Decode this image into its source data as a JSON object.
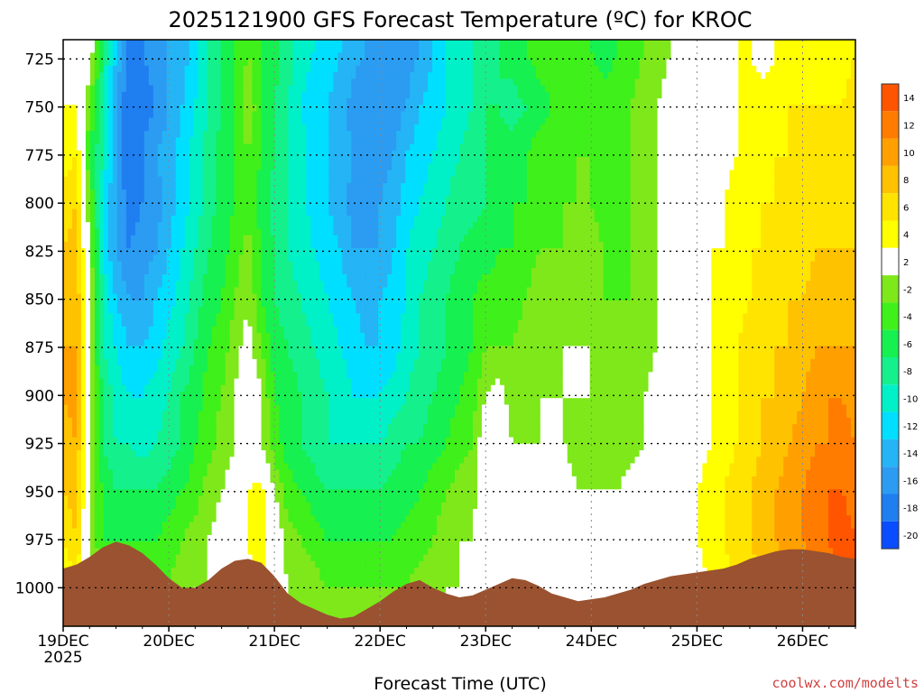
{
  "chart_data": {
    "type": "heatmap",
    "title": "2025121900 GFS Forecast Temperature (ºC) for KROC",
    "xlabel": "Forecast Time (UTC)",
    "ylabel": "",
    "credit": "coolwx.com/modelts",
    "x_ticks": [
      {
        "label": "19DEC",
        "sublabel": "2025",
        "day": 0
      },
      {
        "label": "20DEC",
        "day": 1
      },
      {
        "label": "21DEC",
        "day": 2
      },
      {
        "label": "22DEC",
        "day": 3
      },
      {
        "label": "23DEC",
        "day": 4
      },
      {
        "label": "24DEC",
        "day": 5
      },
      {
        "label": "25DEC",
        "day": 6
      },
      {
        "label": "26DEC",
        "day": 7
      }
    ],
    "xlim_days": [
      0,
      7.5
    ],
    "y_ticks": [
      725,
      750,
      775,
      800,
      825,
      850,
      875,
      900,
      925,
      950,
      975,
      1000
    ],
    "ylim_hpa": [
      1020,
      715
    ],
    "colorbar_levels": [
      14,
      12,
      10,
      8,
      6,
      4,
      2,
      -2,
      -4,
      -6,
      -8,
      -10,
      -12,
      -14,
      -16,
      -18,
      -20
    ],
    "colors": {
      "terrain": "#9a5230",
      "freezing_contour": "#b0106a",
      "bands": [
        "#0a4cff",
        "#1f7ef0",
        "#2b9cf2",
        "#25b4f5",
        "#00dfff",
        "#00f0c8",
        "#14f08c",
        "#16f050",
        "#3ff01a",
        "#7ee81a",
        "#ffffff",
        "#ffff00",
        "#ffe400",
        "#ffc200",
        "#ffa000",
        "#ff7c00",
        "#ff5500"
      ]
    },
    "time_steps_days": [
      0,
      0.125,
      0.25,
      0.375,
      0.5,
      0.625,
      0.75,
      0.875,
      1,
      1.125,
      1.25,
      1.375,
      1.5,
      1.625,
      1.75,
      1.875,
      2,
      2.125,
      2.25,
      2.375,
      2.5,
      2.625,
      2.75,
      2.875,
      3,
      3.125,
      3.25,
      3.375,
      3.5,
      3.625,
      3.75,
      3.875,
      4,
      4.125,
      4.25,
      4.375,
      4.5,
      4.625,
      4.75,
      4.875,
      5,
      5.125,
      5.25,
      5.375,
      5.5,
      5.625,
      5.75,
      5.875,
      6,
      6.125,
      6.25,
      6.375,
      6.5,
      6.625,
      6.75,
      6.875,
      7,
      7.125,
      7.25,
      7.375,
      7.5
    ],
    "pressure_levels_hpa": [
      720,
      750,
      775,
      800,
      825,
      850,
      875,
      900,
      925,
      950,
      975,
      1000
    ],
    "temperature_c": [
      [
        -2,
        -1,
        0,
        -8,
        -14,
        -19,
        -18,
        -17,
        -16,
        -15,
        -13,
        -10,
        -8,
        -6,
        -4,
        -6,
        -7,
        -9,
        -11,
        -12,
        -13,
        -14,
        -15,
        -16,
        -17,
        -18,
        -17,
        -16,
        -14,
        -12,
        -11,
        -10,
        -9,
        -8,
        -7,
        -6,
        -5,
        -5,
        -5,
        -5,
        -6,
        -7,
        -6,
        -5,
        -4,
        -3,
        -2,
        -2,
        -1,
        0,
        1,
        2,
        2,
        1,
        2,
        3,
        3,
        3,
        3,
        3,
        4
      ],
      [
        2,
        2,
        -4,
        -10,
        -16,
        -20,
        -19,
        -18,
        -16,
        -14,
        -12,
        -10,
        -8,
        -6,
        -2,
        -6,
        -8,
        -10,
        -12,
        -13,
        -14,
        -15,
        -17,
        -18,
        -18,
        -17,
        -16,
        -14,
        -13,
        -12,
        -11,
        -10,
        -8,
        -8,
        -9,
        -8,
        -7,
        -6,
        -6,
        -5,
        -5,
        -5,
        -5,
        -4,
        -3,
        -2,
        -1,
        -1,
        0,
        0,
        1,
        2,
        3,
        3,
        3,
        4,
        4,
        4,
        4,
        4,
        5
      ],
      [
        3,
        4,
        -6,
        -10,
        -16,
        -20,
        -18,
        -16,
        -15,
        -13,
        -11,
        -9,
        -7,
        -6,
        -4,
        -6,
        -8,
        -10,
        -11,
        -13,
        -14,
        -15,
        -16,
        -17,
        -17,
        -16,
        -14,
        -13,
        -12,
        -11,
        -10,
        -9,
        -8,
        -7,
        -7,
        -6,
        -5,
        -5,
        -5,
        -4,
        -4,
        -5,
        -5,
        -4,
        -3,
        -2,
        -1,
        0,
        1,
        1,
        1,
        2,
        3,
        3,
        4,
        4,
        5,
        5,
        5,
        5,
        5
      ],
      [
        5,
        6,
        -4,
        -12,
        -16,
        -19,
        -18,
        -17,
        -15,
        -13,
        -11,
        -9,
        -7,
        -6,
        -5,
        -7,
        -9,
        -10,
        -11,
        -13,
        -14,
        -15,
        -17,
        -17,
        -16,
        -15,
        -13,
        -12,
        -11,
        -10,
        -9,
        -9,
        -8,
        -7,
        -6,
        -6,
        -5,
        -5,
        -4,
        -4,
        -4,
        -5,
        -5,
        -4,
        -3,
        -2,
        -1,
        0,
        1,
        1,
        2,
        3,
        3,
        4,
        4,
        5,
        5,
        6,
        5,
        6,
        5
      ],
      [
        6,
        7,
        -2,
        -12,
        -16,
        -18,
        -17,
        -16,
        -14,
        -12,
        -10,
        -8,
        -7,
        -5,
        -3,
        -6,
        -8,
        -10,
        -11,
        -12,
        -13,
        -14,
        -16,
        -16,
        -16,
        -14,
        -12,
        -11,
        -10,
        -9,
        -8,
        -7,
        -7,
        -6,
        -6,
        -5,
        -4,
        -4,
        -4,
        -4,
        -3,
        -4,
        -5,
        -4,
        -3,
        -2,
        -1,
        0,
        1,
        2,
        2,
        3,
        4,
        4,
        5,
        5,
        5,
        6,
        6,
        6,
        6
      ],
      [
        7,
        8,
        -2,
        -10,
        -14,
        -16,
        -16,
        -14,
        -13,
        -11,
        -9,
        -7,
        -6,
        -4,
        -2,
        -6,
        -8,
        -9,
        -10,
        -11,
        -12,
        -13,
        -14,
        -15,
        -14,
        -13,
        -12,
        -10,
        -9,
        -8,
        -7,
        -6,
        -5,
        -5,
        -5,
        -4,
        -3,
        -3,
        -3,
        -3,
        -3,
        -4,
        -4,
        -4,
        -3,
        -2,
        -1,
        0,
        1,
        2,
        3,
        3,
        4,
        5,
        5,
        6,
        6,
        7,
        7,
        7,
        7
      ],
      [
        8,
        8,
        -2,
        -10,
        -12,
        -14,
        -14,
        -13,
        -11,
        -10,
        -8,
        -6,
        -5,
        -3,
        -1,
        -4,
        -7,
        -8,
        -9,
        -10,
        -11,
        -12,
        -13,
        -14,
        -14,
        -13,
        -11,
        -10,
        -9,
        -8,
        -7,
        -6,
        -4,
        -4,
        -4,
        -3,
        -3,
        -3,
        -2,
        -2,
        -2,
        -3,
        -4,
        -4,
        -3,
        -2,
        -1,
        0,
        1,
        2,
        3,
        4,
        5,
        5,
        6,
        6,
        7,
        8,
        8,
        8,
        8
      ],
      [
        8,
        9,
        -2,
        -8,
        -11,
        -12,
        -12,
        -11,
        -10,
        -8,
        -7,
        -5,
        -4,
        -2,
        2,
        -2,
        -6,
        -7,
        -8,
        -9,
        -10,
        -11,
        -12,
        -12,
        -12,
        -11,
        -10,
        -9,
        -8,
        -7,
        -6,
        -5,
        -2,
        -1,
        -3,
        -3,
        -2,
        -2,
        -2,
        -2,
        -2,
        -3,
        -3,
        -3,
        -2,
        -1,
        0,
        0,
        1,
        2,
        3,
        4,
        5,
        6,
        6,
        7,
        8,
        9,
        10,
        10,
        9
      ],
      [
        7,
        8,
        -2,
        -8,
        -10,
        -10,
        -11,
        -10,
        -9,
        -8,
        -6,
        -5,
        -3,
        -2,
        1,
        -2,
        -5,
        -7,
        -8,
        -9,
        -10,
        -10,
        -10,
        -10,
        -10,
        -9,
        -8,
        -8,
        -7,
        -6,
        -5,
        -4,
        0,
        0,
        -2,
        -2,
        -2,
        -2,
        -2,
        -3,
        -3,
        -3,
        -3,
        -3,
        -2,
        -1,
        0,
        0,
        1,
        2,
        3,
        4,
        5,
        6,
        7,
        8,
        9,
        10,
        10,
        11,
        10
      ],
      [
        6,
        7,
        -2,
        -6,
        -8,
        -8,
        -8,
        -8,
        -7,
        -6,
        -5,
        -3,
        -2,
        -1,
        2,
        3,
        -2,
        -5,
        -6,
        -7,
        -8,
        -8,
        -8,
        -8,
        -8,
        -7,
        -7,
        -6,
        -5,
        -4,
        -3,
        -3,
        1,
        0,
        -2,
        -2,
        -1,
        -1,
        -1,
        -2,
        -2,
        -2,
        -2,
        -1,
        0,
        0,
        0,
        1,
        2,
        3,
        4,
        5,
        6,
        7,
        8,
        9,
        10,
        11,
        12,
        12,
        11
      ],
      [
        4,
        6,
        -2,
        -6,
        -6,
        -6,
        -6,
        -6,
        -5,
        -4,
        -3,
        -2,
        -1,
        0,
        2,
        4,
        0,
        -3,
        -4,
        -5,
        -6,
        -6,
        -6,
        -6,
        -6,
        -6,
        -5,
        -5,
        -4,
        -3,
        -2,
        -2,
        0,
        0,
        -1,
        -1,
        0,
        -1,
        -1,
        -1,
        -1,
        -1,
        -1,
        0,
        0,
        0,
        1,
        1,
        2,
        3,
        4,
        5,
        6,
        7,
        8,
        9,
        10,
        11,
        12,
        13,
        12
      ],
      [
        2,
        4,
        -2,
        -4,
        -4,
        -4,
        -4,
        -4,
        -4,
        -3,
        -2,
        -2,
        -1,
        0,
        1,
        2,
        0,
        -2,
        -3,
        -3,
        -4,
        -4,
        -4,
        -4,
        -4,
        -4,
        -4,
        -3,
        -3,
        -2,
        -2,
        -1,
        -1,
        0,
        0,
        0,
        0,
        0,
        0,
        0,
        0,
        0,
        0,
        0,
        0,
        0,
        0,
        0,
        1,
        2,
        3,
        4,
        5,
        6,
        7,
        8,
        9,
        10,
        11,
        12,
        12
      ]
    ],
    "surface_pressure_hpa": [
      990,
      988,
      984,
      979,
      976,
      978,
      982,
      988,
      995,
      1000,
      1000,
      996,
      990,
      986,
      985,
      987,
      994,
      1003,
      1008,
      1011,
      1014,
      1016,
      1015,
      1011,
      1007,
      1002,
      998,
      996,
      1000,
      1003,
      1005,
      1004,
      1001,
      998,
      995,
      996,
      999,
      1003,
      1005,
      1007,
      1006,
      1005,
      1003,
      1001,
      998,
      996,
      994,
      993,
      992,
      991,
      990,
      988,
      985,
      983,
      981,
      980,
      980,
      981,
      982,
      984,
      985
    ]
  }
}
